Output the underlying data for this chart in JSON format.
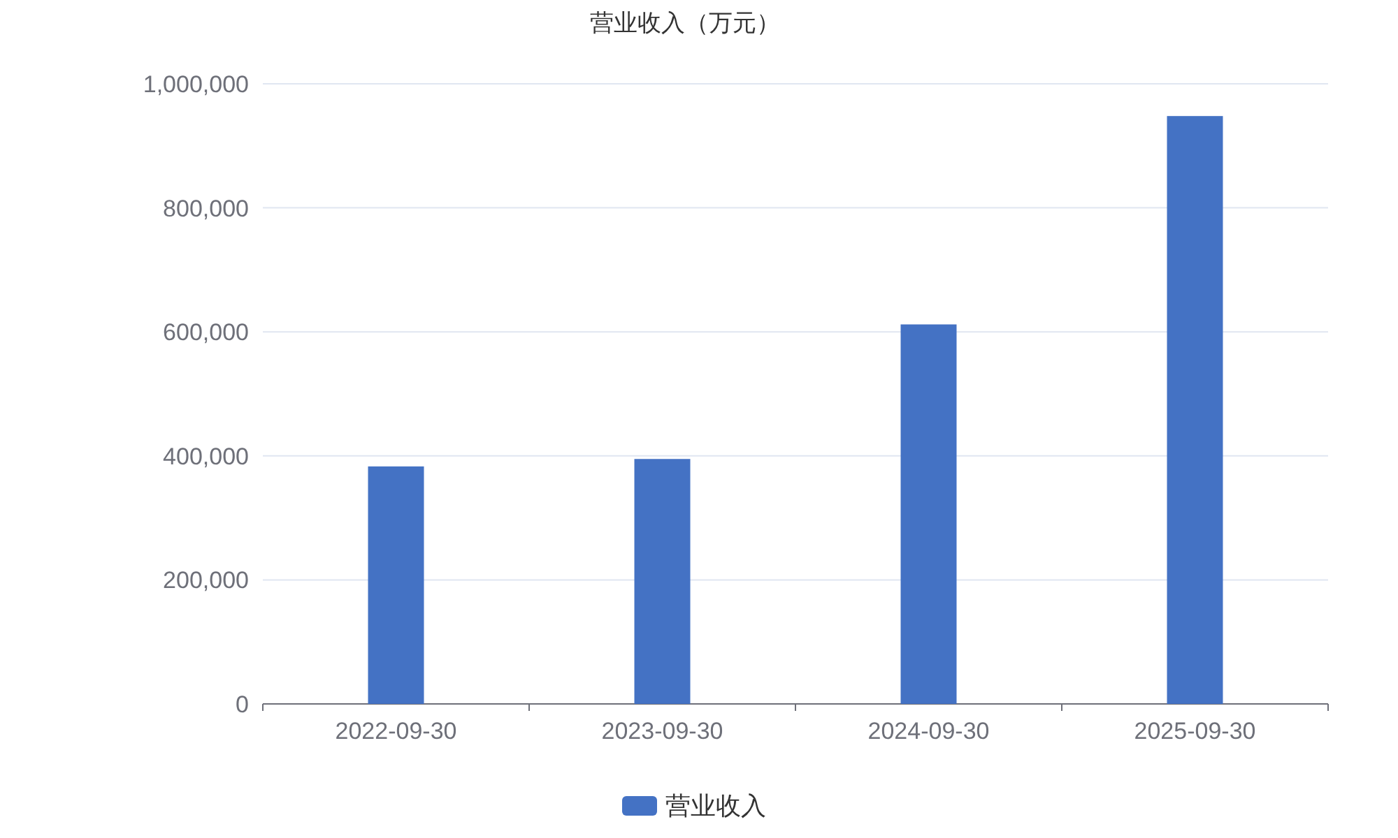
{
  "chart_data": {
    "type": "bar",
    "title": "营业收入（万元）",
    "categories": [
      "2022-09-30",
      "2023-09-30",
      "2024-09-30",
      "2025-09-30"
    ],
    "series": [
      {
        "name": "营业收入",
        "color": "#4472c4",
        "values": [
          383000,
          395000,
          612000,
          948000
        ]
      }
    ],
    "ylim": [
      0,
      1000000
    ],
    "yticks": [
      {
        "value": 0,
        "label": "0"
      },
      {
        "value": 200000,
        "label": "200,000"
      },
      {
        "value": 400000,
        "label": "400,000"
      },
      {
        "value": 600000,
        "label": "600,000"
      },
      {
        "value": 800000,
        "label": "800,000"
      },
      {
        "value": 1000000,
        "label": "1,000,000"
      }
    ],
    "grid": "y",
    "legend": "bottom"
  }
}
